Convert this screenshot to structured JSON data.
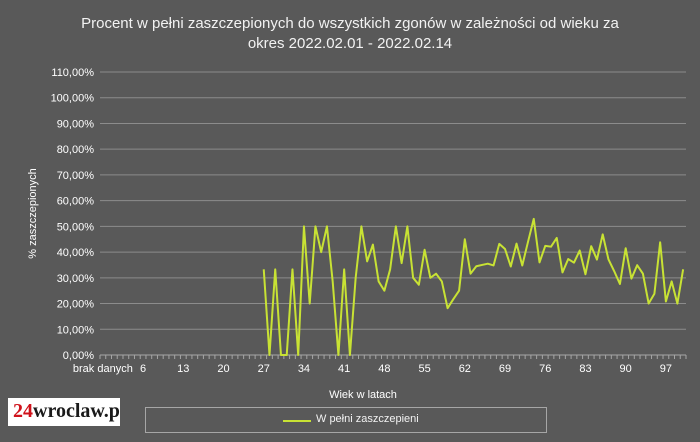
{
  "chart_data": {
    "type": "line",
    "title_line1": "Procent w pełni zaszczepionych do wszystkich zgonów w zależności od wieku za",
    "title_line2": "okres 2022.02.01 - 2022.02.14",
    "xlabel": "Wiek w latach",
    "ylabel": "% zaszczepionych",
    "ylim": [
      0,
      110
    ],
    "ytick_labels": [
      "0,00%",
      "10,00%",
      "20,00%",
      "30,00%",
      "40,00%",
      "50,00%",
      "60,00%",
      "70,00%",
      "80,00%",
      "90,00%",
      "100,00%",
      "110,00%"
    ],
    "xtick_labels": [
      "brak danych",
      "6",
      "13",
      "20",
      "27",
      "34",
      "41",
      "48",
      "55",
      "62",
      "69",
      "76",
      "83",
      "90",
      "97"
    ],
    "legend_position": "bottom",
    "grid": true,
    "x_note": "categories: brak danych, then ages 0-101",
    "series": [
      {
        "name": "W pełni zaszczepieni",
        "color": "#c8e234",
        "values": [
          null,
          null,
          null,
          null,
          null,
          null,
          null,
          null,
          null,
          null,
          null,
          null,
          null,
          null,
          null,
          null,
          null,
          null,
          null,
          null,
          null,
          null,
          null,
          null,
          null,
          null,
          null,
          null,
          33.3,
          0,
          33.3,
          0,
          0,
          33.3,
          0,
          50,
          20,
          50,
          40,
          50,
          28.6,
          0,
          33.3,
          0,
          30,
          50,
          36.4,
          42.9,
          28.6,
          25,
          33.3,
          50,
          35.7,
          50,
          30,
          27.3,
          40.9,
          30,
          31.6,
          28.6,
          18.2,
          21.7,
          25,
          45,
          31.6,
          34.5,
          35,
          35.5,
          34.8,
          43.2,
          41.2,
          34.4,
          43.3,
          34.8,
          44,
          52.9,
          36,
          42.4,
          42.1,
          45.5,
          32.1,
          37.3,
          35.9,
          40.6,
          31.4,
          42.3,
          37.1,
          46.9,
          37.2,
          32.6,
          27.6,
          41.5,
          29.7,
          34.9,
          31.6,
          20,
          23.8,
          43.8,
          20.8,
          28.6,
          20,
          33.3
        ]
      }
    ]
  },
  "logo": {
    "number": "24",
    "word": "wroclaw.pl"
  },
  "colors": {
    "background": "#595959",
    "grid": "#8c8c8c",
    "series": "#c8e234",
    "text": "#ffffff"
  }
}
